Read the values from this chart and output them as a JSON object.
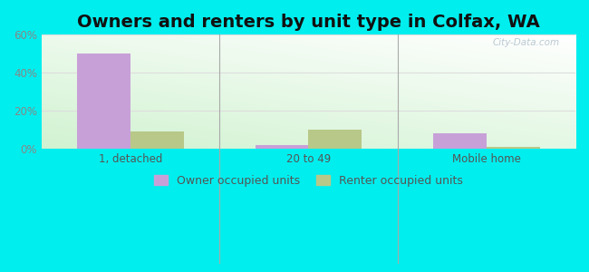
{
  "title": "Owners and renters by unit type in Colfax, WA",
  "categories": [
    "1, detached",
    "20 to 49",
    "Mobile home"
  ],
  "owner_values": [
    50,
    2,
    8
  ],
  "renter_values": [
    9,
    10,
    1
  ],
  "owner_color": "#c8a0d8",
  "renter_color": "#b8c888",
  "ylim": [
    0,
    60
  ],
  "yticks": [
    0,
    20,
    40,
    60
  ],
  "ytick_labels": [
    "0%",
    "20%",
    "40%",
    "60%"
  ],
  "outer_bg": "#00eeee",
  "bar_width": 0.3,
  "title_fontsize": 14,
  "legend_fontsize": 9,
  "tick_fontsize": 8.5,
  "watermark": "City-Data.com"
}
